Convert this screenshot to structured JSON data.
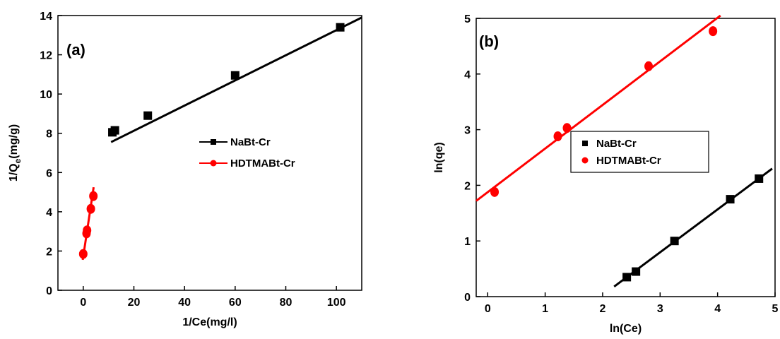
{
  "chart_data": [
    {
      "type": "scatter",
      "panel_label": "(a)",
      "xlabel": "1/Ce(mg/l)",
      "ylabel_main": "1/Q",
      "ylabel_sub": "e",
      "ylabel_tail": "(mg/g)",
      "xlim": [
        -10,
        110
      ],
      "ylim": [
        0,
        14
      ],
      "xticks": [
        0,
        20,
        40,
        60,
        80,
        100
      ],
      "yticks": [
        0,
        2,
        4,
        6,
        8,
        10,
        12,
        14
      ],
      "legend_placement": "center-right",
      "series": [
        {
          "name": "NaBt-Cr",
          "marker": "square",
          "color": "#000000",
          "x": [
            11.5,
            12.5,
            25.5,
            60,
            101.5
          ],
          "y": [
            8.05,
            8.15,
            8.9,
            10.95,
            13.4
          ],
          "fit_line": [
            [
              11,
              7.55
            ],
            [
              110,
              13.9
            ]
          ]
        },
        {
          "name": "HDTMABt-Cr",
          "marker": "circle",
          "color": "#ff0000",
          "x": [
            0,
            1.3,
            1.5,
            3,
            4
          ],
          "y": [
            1.85,
            2.9,
            3.05,
            4.15,
            4.8
          ],
          "fit_line": [
            [
              -0.2,
              1.55
            ],
            [
              4.1,
              5.25
            ]
          ]
        }
      ]
    },
    {
      "type": "scatter",
      "panel_label": "(b)",
      "xlabel": "ln(Ce)",
      "ylabel": "ln(qe)",
      "xlim": [
        -0.2,
        5
      ],
      "ylim": [
        0,
        5
      ],
      "xticks": [
        0,
        1,
        2,
        3,
        4,
        5
      ],
      "yticks": [
        0,
        1,
        2,
        3,
        4,
        5
      ],
      "legend_placement": "center-right",
      "series": [
        {
          "name": "NaBt-Cr",
          "marker": "square",
          "color": "#000000",
          "x": [
            2.42,
            2.58,
            3.25,
            4.22,
            4.72
          ],
          "y": [
            0.35,
            0.45,
            1.0,
            1.75,
            2.12
          ],
          "fit_line": [
            [
              2.2,
              0.18
            ],
            [
              4.95,
              2.3
            ]
          ]
        },
        {
          "name": "HDTMABt-Cr",
          "marker": "circle",
          "color": "#ff0000",
          "x": [
            0.12,
            1.22,
            1.38,
            2.8,
            3.92
          ],
          "y": [
            1.88,
            2.88,
            3.03,
            4.14,
            4.77
          ],
          "fit_line": [
            [
              -0.2,
              1.72
            ],
            [
              4.05,
              5.05
            ]
          ]
        }
      ]
    }
  ]
}
